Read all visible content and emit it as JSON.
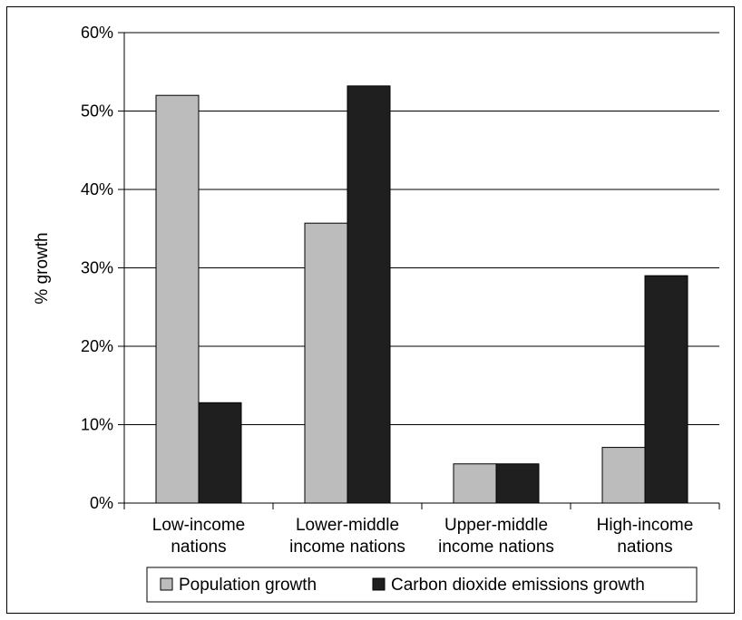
{
  "chart_data": {
    "type": "bar",
    "title": "",
    "xlabel": "",
    "ylabel": "% growth",
    "ylim": [
      0,
      60
    ],
    "yticks": [
      "0%",
      "10%",
      "20%",
      "30%",
      "40%",
      "50%",
      "60%"
    ],
    "ytick_values": [
      0,
      10,
      20,
      30,
      40,
      50,
      60
    ],
    "grid": true,
    "legend_position": "bottom",
    "categories": [
      [
        "Low-income",
        "nations"
      ],
      [
        "Lower-middle",
        "income nations"
      ],
      [
        "Upper-middle",
        "income nations"
      ],
      [
        "High-income",
        "nations"
      ]
    ],
    "series": [
      {
        "name": "Population growth",
        "color": "#bcbcbc",
        "values": [
          52,
          35.7,
          5,
          7.1
        ]
      },
      {
        "name": "Carbon dioxide emissions growth",
        "color": "#1f1f1f",
        "values": [
          12.8,
          53.2,
          5,
          29
        ]
      }
    ]
  }
}
